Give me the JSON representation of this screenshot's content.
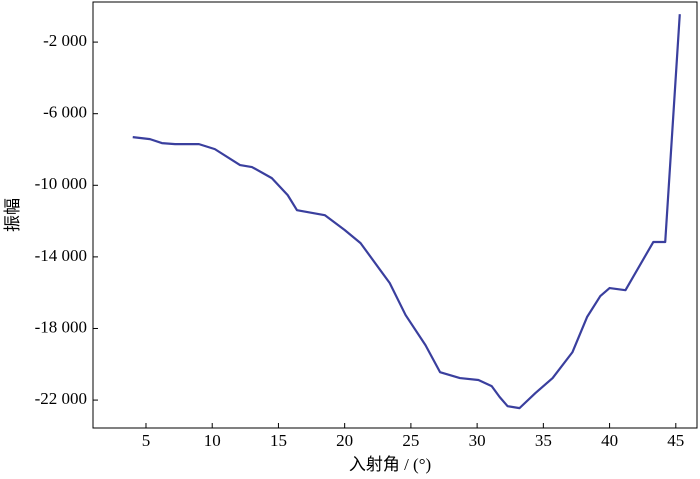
{
  "chart_data": {
    "type": "line",
    "x_label": "入射角 / (°)",
    "y_label": "振幅",
    "xlim": [
      1,
      46.6
    ],
    "ylim": [
      -23560,
      240
    ],
    "xticks": [
      5,
      10,
      15,
      20,
      25,
      30,
      35,
      40,
      45
    ],
    "yticks": [
      {
        "value": -2000,
        "label": "-2 000"
      },
      {
        "value": -6000,
        "label": "-6 000"
      },
      {
        "value": -10000,
        "label": "-10 000"
      },
      {
        "value": -14000,
        "label": "-14 000"
      },
      {
        "value": -18000,
        "label": "-18 000"
      },
      {
        "value": -22000,
        "label": "-22 000"
      }
    ],
    "x": [
      4.0,
      5.3,
      6.2,
      7.2,
      9.0,
      10.2,
      12.1,
      13.0,
      14.5,
      15.7,
      16.4,
      18.5,
      20.0,
      21.2,
      23.4,
      24.6,
      26.1,
      27.2,
      28.7,
      30.1,
      31.1,
      31.7,
      32.3,
      33.2,
      34.4,
      35.7,
      37.2,
      38.3,
      39.3,
      40.0,
      41.2,
      43.3,
      44.2,
      45.3
    ],
    "series": [
      {
        "color": "#3a3f9e",
        "values": [
          -7308,
          -7420,
          -7643,
          -7700,
          -7700,
          -7980,
          -8870,
          -8980,
          -9600,
          -10550,
          -11390,
          -11670,
          -12500,
          -13230,
          -15460,
          -17250,
          -18930,
          -20440,
          -20770,
          -20880,
          -21220,
          -21830,
          -22340,
          -22450,
          -21610,
          -20770,
          -19320,
          -17360,
          -16190,
          -15740,
          -15860,
          -13170,
          -13170,
          -440
        ]
      }
    ]
  }
}
